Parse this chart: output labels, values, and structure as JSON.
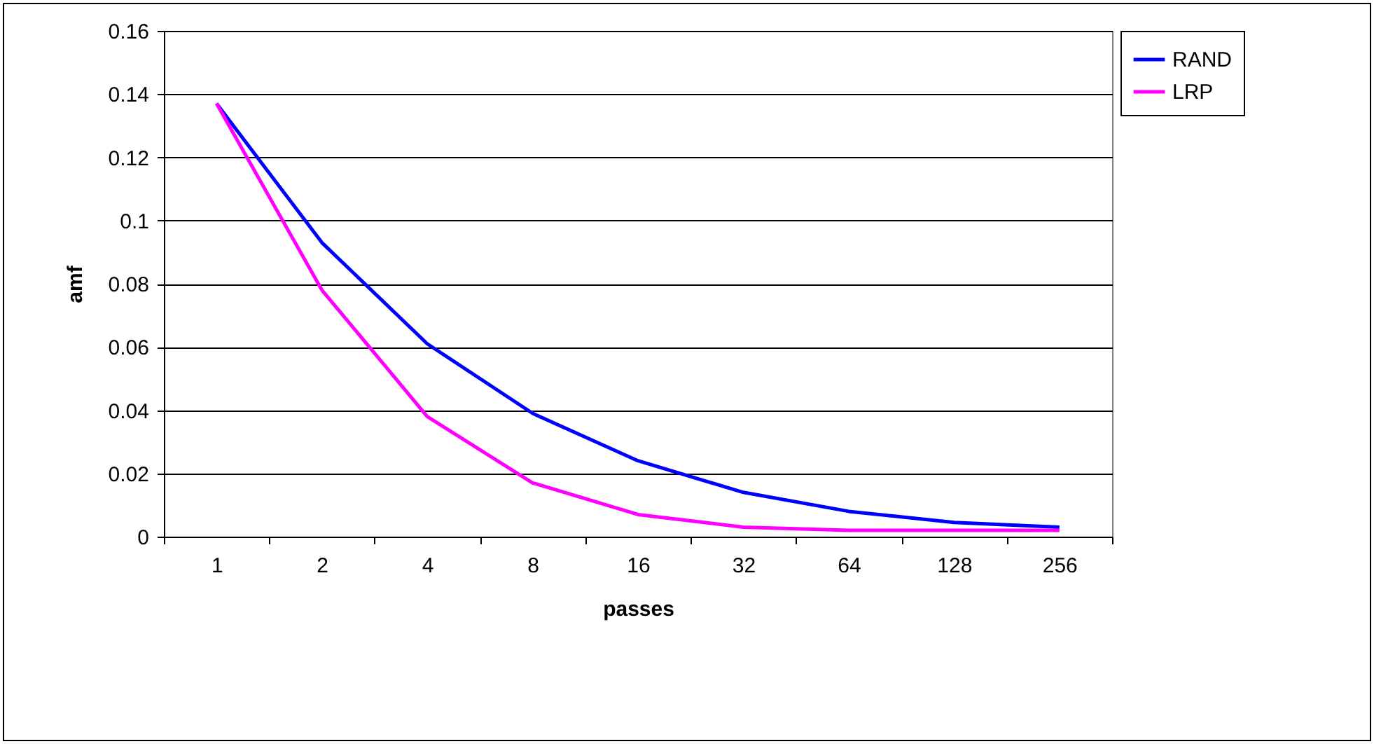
{
  "chart_data": {
    "type": "line",
    "xlabel": "passes",
    "ylabel": "amf",
    "categories": [
      "1",
      "2",
      "4",
      "8",
      "16",
      "32",
      "64",
      "128",
      "256"
    ],
    "series": [
      {
        "name": "RAND",
        "color": "#0000ff",
        "values": [
          0.137,
          0.093,
          0.061,
          0.039,
          0.024,
          0.014,
          0.008,
          0.0045,
          0.003
        ]
      },
      {
        "name": "LRP",
        "color": "#ff00ff",
        "values": [
          0.137,
          0.078,
          0.038,
          0.017,
          0.007,
          0.003,
          0.002,
          0.002,
          0.002
        ]
      }
    ],
    "ylim": [
      0,
      0.16
    ],
    "yticks": [
      0,
      0.02,
      0.04,
      0.06,
      0.08,
      0.1,
      0.12,
      0.14,
      0.16
    ],
    "grid": "y",
    "legend": "right",
    "marker": "none",
    "line_style": "solid"
  }
}
